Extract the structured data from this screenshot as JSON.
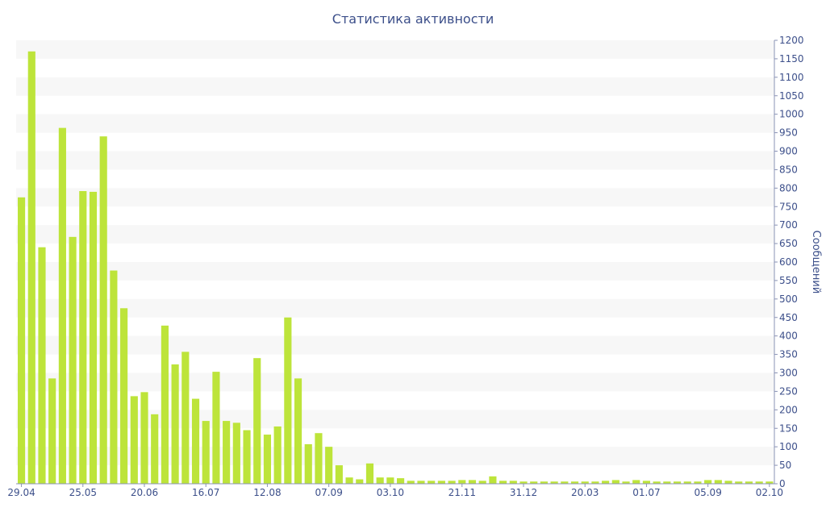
{
  "chart_data": {
    "type": "bar",
    "title": "Статистика активности",
    "ylabel": "Сообщений",
    "ylim": [
      0,
      1200
    ],
    "y_ticks": [
      0,
      50,
      100,
      150,
      200,
      250,
      300,
      350,
      400,
      450,
      500,
      550,
      600,
      650,
      700,
      750,
      800,
      850,
      900,
      950,
      1000,
      1050,
      1100,
      1150,
      1200
    ],
    "x_tick_labels": [
      {
        "label": "29.04",
        "index": 0
      },
      {
        "label": "25.05",
        "index": 6
      },
      {
        "label": "20.06",
        "index": 12
      },
      {
        "label": "16.07",
        "index": 18
      },
      {
        "label": "12.08",
        "index": 24
      },
      {
        "label": "07.09",
        "index": 30
      },
      {
        "label": "03.10",
        "index": 36
      },
      {
        "label": "21.11",
        "index": 43
      },
      {
        "label": "31.12",
        "index": 49
      },
      {
        "label": "20.03",
        "index": 55
      },
      {
        "label": "01.07",
        "index": 61
      },
      {
        "label": "05.09",
        "index": 67
      },
      {
        "label": "02.10",
        "index": 73
      }
    ],
    "values": [
      775,
      1170,
      640,
      285,
      963,
      668,
      792,
      790,
      940,
      577,
      475,
      237,
      248,
      188,
      428,
      323,
      357,
      230,
      170,
      303,
      170,
      165,
      145,
      340,
      133,
      155,
      450,
      285,
      107,
      137,
      100,
      50,
      17,
      12,
      55,
      17,
      17,
      15,
      8,
      8,
      8,
      8,
      8,
      10,
      10,
      8,
      20,
      8,
      8,
      6,
      6,
      6,
      6,
      6,
      6,
      6,
      6,
      8,
      10,
      6,
      10,
      8,
      6,
      6,
      6,
      6,
      6,
      10,
      10,
      8,
      6,
      6,
      6,
      6
    ],
    "grid": true,
    "bar_color": "#bde43a",
    "stripe_color": "#f7f7f7",
    "axis_text_color": "#3c4f8a"
  }
}
